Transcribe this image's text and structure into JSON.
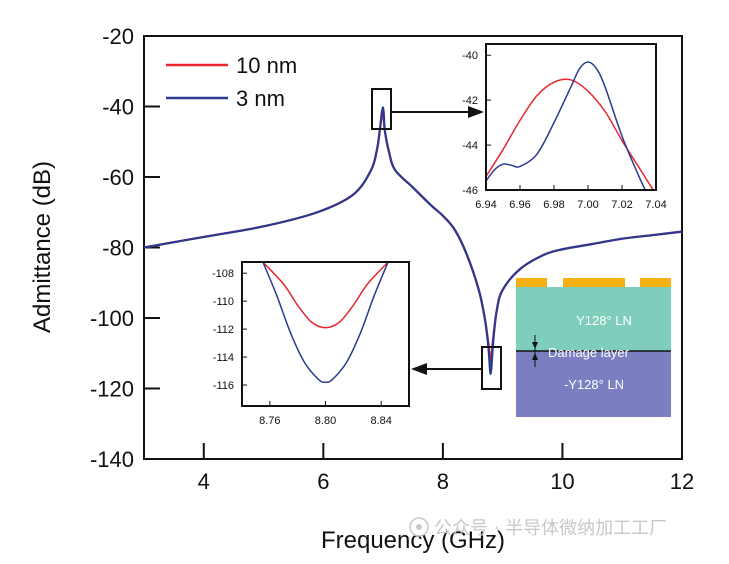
{
  "chart_data": [
    {
      "id": "main",
      "type": "line",
      "xlabel": "Frequency (GHz)",
      "ylabel": "Admittance (dB)",
      "xlim": [
        3,
        12
      ],
      "ylim": [
        -140,
        -20
      ],
      "xticks": [
        4,
        6,
        8,
        10,
        12
      ],
      "yticks": [
        -20,
        -40,
        -60,
        -80,
        -100,
        -120,
        -140
      ],
      "legend": {
        "placement": "top-left"
      },
      "series": [
        {
          "name": "10 nm",
          "color": "#e8262e",
          "x": [
            3.0,
            4.0,
            5.0,
            5.9,
            6.5,
            6.8,
            6.9,
            6.95,
            6.99,
            7.03,
            7.1,
            7.2,
            7.5,
            7.8,
            8.0,
            8.2,
            8.4,
            8.6,
            8.7,
            8.76,
            8.8,
            8.84,
            8.9,
            9.0,
            9.3,
            9.7,
            10.0,
            10.5,
            11.0,
            11.5,
            12.0
          ],
          "y": [
            -80,
            -77,
            -74,
            -70,
            -65,
            -58,
            -52,
            -46,
            -41,
            -47,
            -53,
            -58,
            -63,
            -68,
            -71,
            -75,
            -82,
            -92,
            -100,
            -107,
            -112,
            -106,
            -98,
            -92,
            -86,
            -82,
            -80.5,
            -79,
            -77.5,
            -76.5,
            -75.5
          ]
        },
        {
          "name": "3 nm",
          "color": "#2b3a8f",
          "x": [
            3.0,
            4.0,
            5.0,
            5.9,
            6.5,
            6.8,
            6.9,
            6.95,
            7.0,
            7.03,
            7.1,
            7.2,
            7.5,
            7.8,
            8.0,
            8.2,
            8.4,
            8.6,
            8.7,
            8.76,
            8.8,
            8.84,
            8.9,
            9.0,
            9.3,
            9.7,
            10.0,
            10.5,
            11.0,
            11.5,
            12.0
          ],
          "y": [
            -80,
            -77,
            -74,
            -70,
            -65,
            -58,
            -52,
            -46,
            -40.3,
            -47,
            -53,
            -58,
            -63,
            -68,
            -71,
            -75,
            -82,
            -92,
            -100,
            -108,
            -115.8,
            -107,
            -98,
            -92,
            -86,
            -82,
            -80.5,
            -79,
            -77.5,
            -76.5,
            -75.5
          ]
        }
      ],
      "annotations": [
        {
          "type": "zoom-box",
          "target": "inset-top",
          "x_range": [
            6.85,
            7.15
          ],
          "y_range": [
            -47,
            -34
          ]
        },
        {
          "type": "zoom-box",
          "target": "inset-bottom",
          "x_range": [
            8.66,
            8.94
          ],
          "y_range": [
            -121,
            -110
          ]
        }
      ]
    },
    {
      "id": "inset-top",
      "type": "line",
      "xlim": [
        6.94,
        7.04
      ],
      "ylim": [
        -46,
        -39.5
      ],
      "xticks": [
        "6.94",
        "6.96",
        "6.98",
        "7.00",
        "7.02",
        "7.04"
      ],
      "yticks": [
        "-40",
        "-42",
        "-44",
        "-46"
      ],
      "series": [
        {
          "name": "10 nm",
          "color": "#e8262e",
          "x": [
            6.94,
            6.95,
            6.96,
            6.97,
            6.98,
            6.99,
            7.0,
            7.01,
            7.02,
            7.03,
            7.04
          ],
          "y": [
            -45.4,
            -44.2,
            -42.9,
            -41.8,
            -41.2,
            -41.1,
            -41.6,
            -42.5,
            -43.8,
            -45.0,
            -46.2
          ]
        },
        {
          "name": "3 nm",
          "color": "#2b3a8f",
          "x": [
            6.94,
            6.945,
            6.95,
            6.955,
            6.96,
            6.97,
            6.98,
            6.99,
            6.995,
            7.0,
            7.005,
            7.01,
            7.02,
            7.03,
            7.035
          ],
          "y": [
            -45.6,
            -45.1,
            -44.85,
            -44.9,
            -44.95,
            -44.4,
            -43.0,
            -41.4,
            -40.6,
            -40.3,
            -40.6,
            -41.4,
            -43.6,
            -45.4,
            -46.2
          ]
        }
      ]
    },
    {
      "id": "inset-bottom",
      "type": "line",
      "xlim": [
        8.74,
        8.86
      ],
      "ylim": [
        -117.5,
        -107.2
      ],
      "xticks": [
        "8.76",
        "8.80",
        "8.84"
      ],
      "yticks": [
        "-108",
        "-110",
        "-112",
        "-114",
        "-116"
      ],
      "series": [
        {
          "name": "10 nm",
          "color": "#e8262e",
          "x": [
            8.755,
            8.77,
            8.78,
            8.79,
            8.8,
            8.81,
            8.82,
            8.83,
            8.845
          ],
          "y": [
            -107.2,
            -108.8,
            -110.3,
            -111.5,
            -111.9,
            -111.5,
            -110.3,
            -108.8,
            -107.2
          ]
        },
        {
          "name": "3 nm",
          "color": "#2b3a8f",
          "x": [
            8.755,
            8.765,
            8.775,
            8.785,
            8.795,
            8.8,
            8.805,
            8.815,
            8.825,
            8.835,
            8.845
          ],
          "y": [
            -107.2,
            -109.6,
            -112.3,
            -114.4,
            -115.6,
            -115.8,
            -115.6,
            -114.4,
            -112.3,
            -109.6,
            -107.2
          ]
        }
      ]
    }
  ],
  "layer_stack": {
    "top_layer": "Y128° LN",
    "middle_layer": "Damage layer",
    "bottom_layer": "-Y128° LN",
    "electrode_color": "#f5b014",
    "top_color": "#7fcdbb",
    "bottom_color": "#7b7fc1"
  },
  "watermark": {
    "text": "公众号 · 半导体微纳加工工厂"
  }
}
